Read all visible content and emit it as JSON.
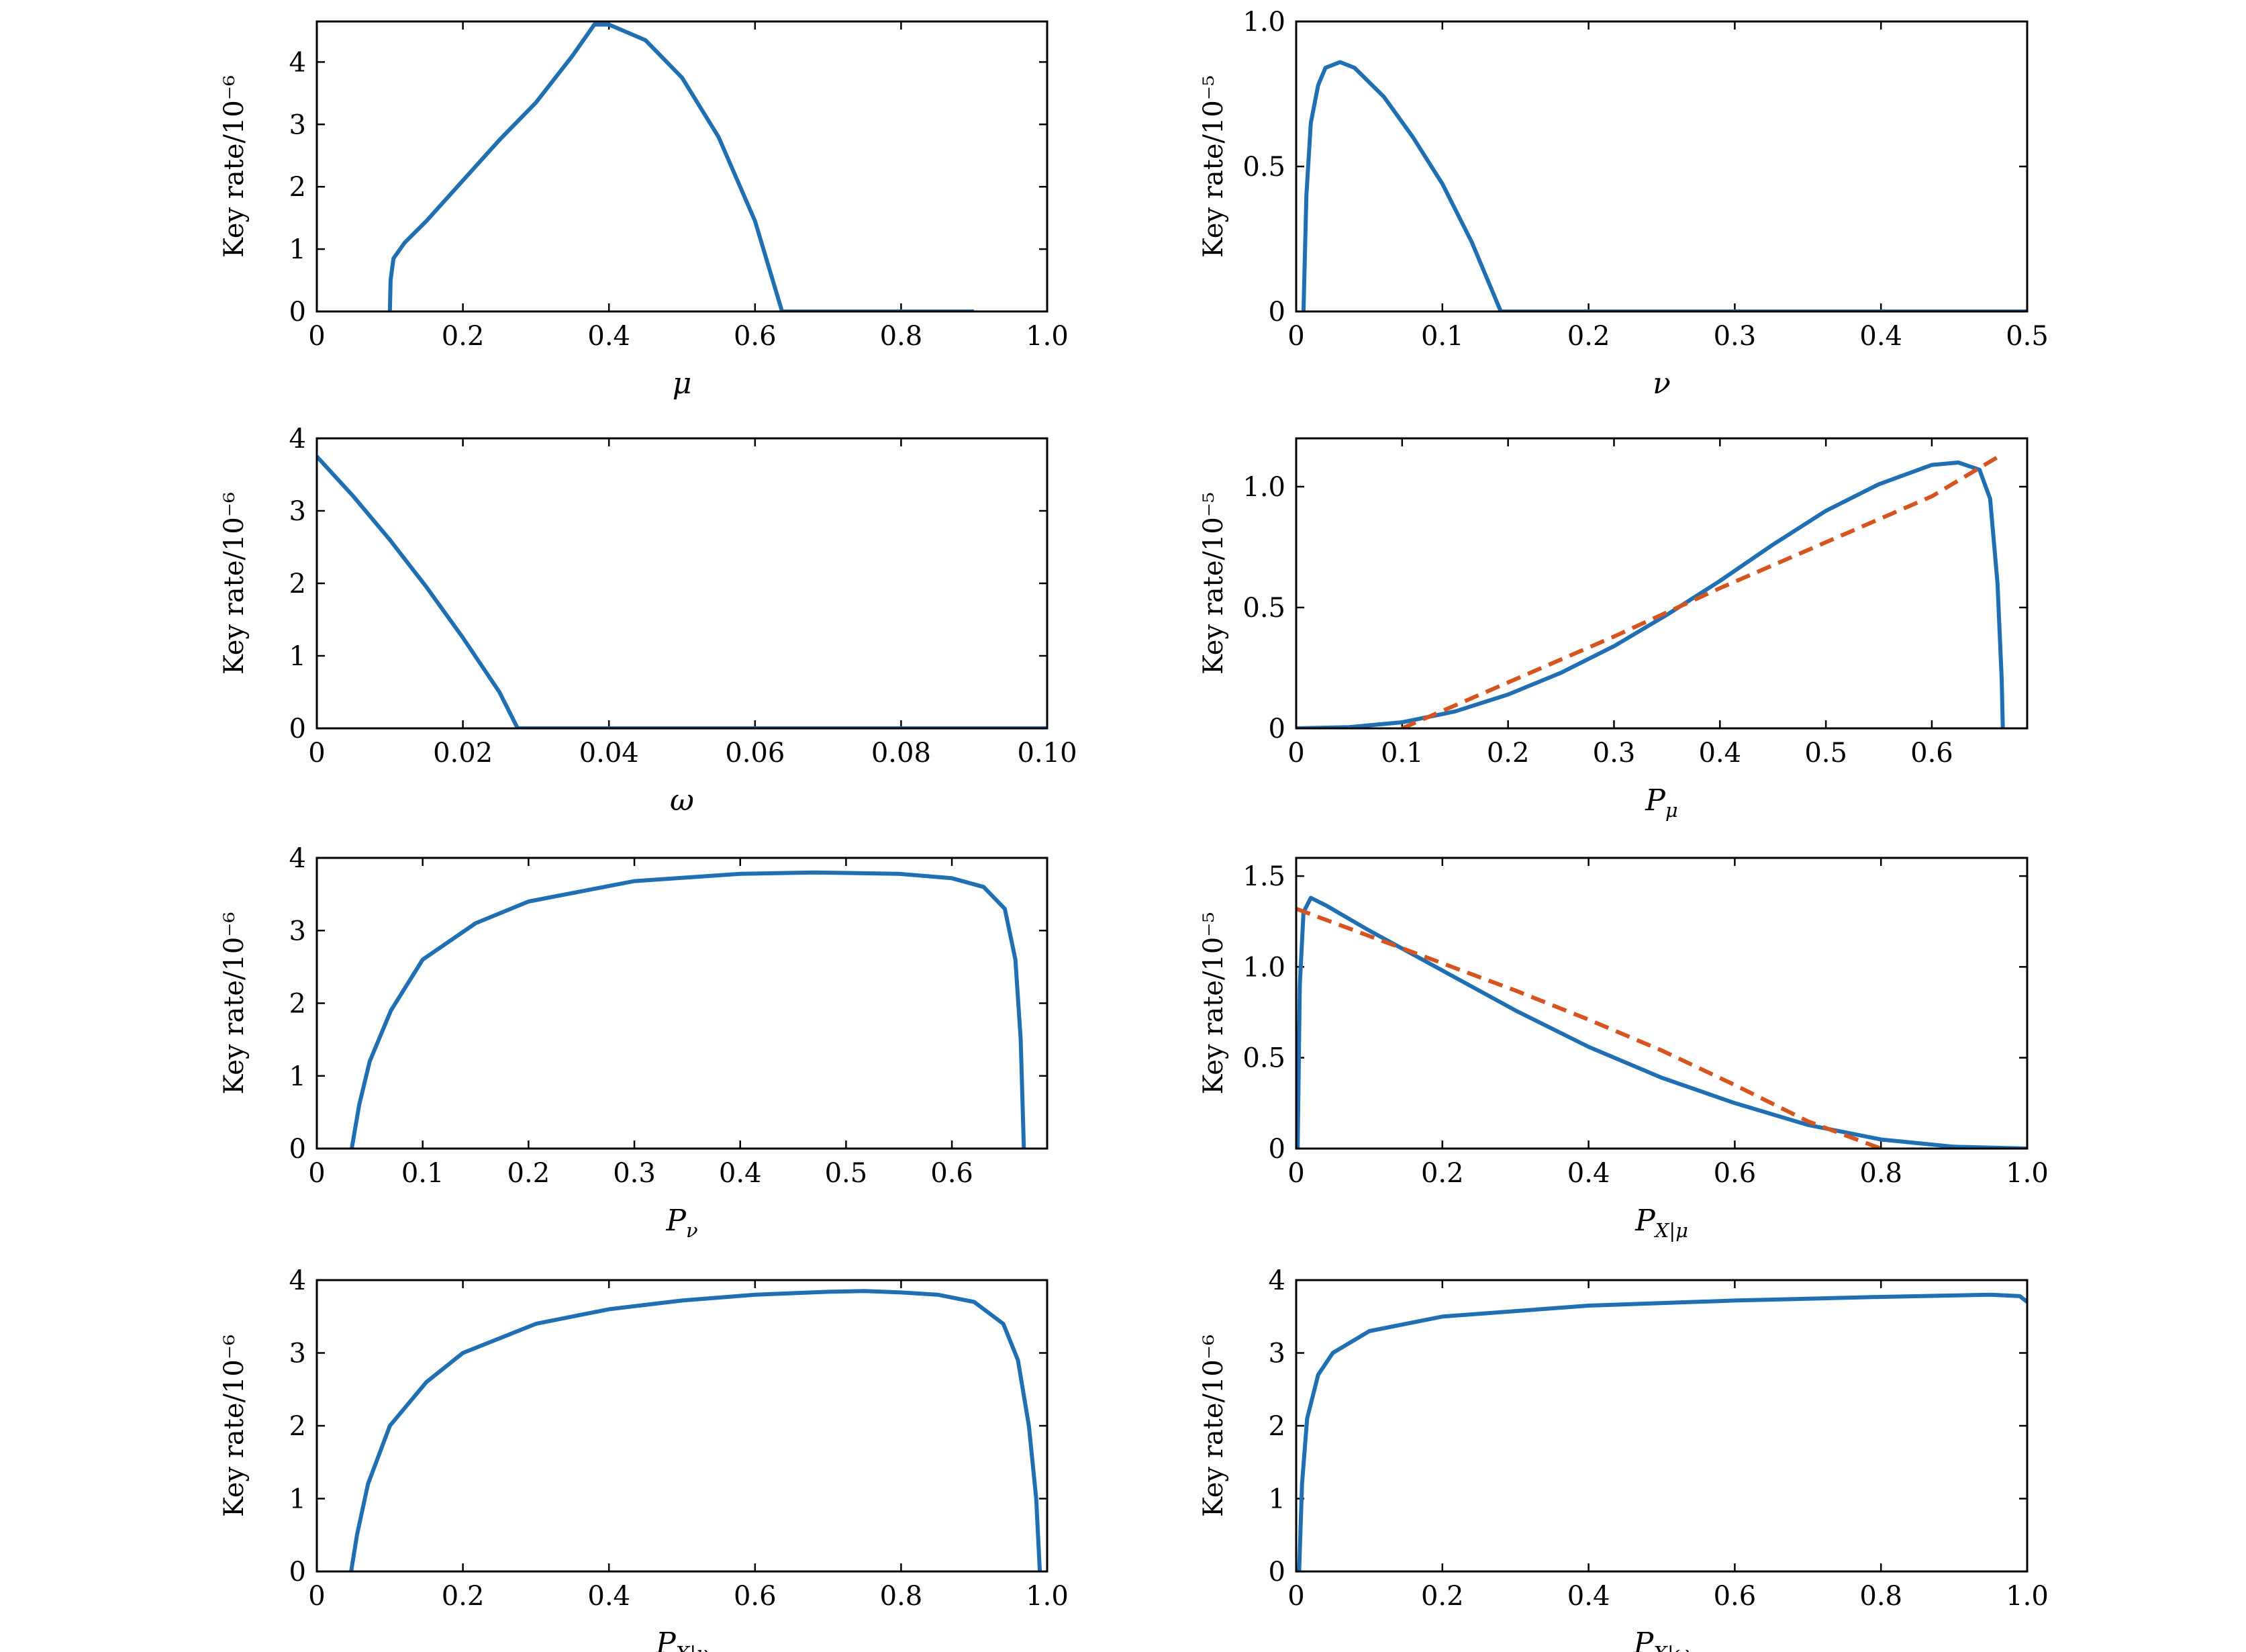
{
  "colors": {
    "solid": "#1f6fb2",
    "dashed": "#d5541f"
  },
  "chart_data": [
    {
      "type": "line",
      "xlabel": "μ",
      "ylabel": "Key rate/10⁻⁶",
      "xlim": [
        0,
        1.0
      ],
      "ylim": [
        0,
        4.65
      ],
      "xticks": [
        0,
        0.2,
        0.4,
        0.6,
        0.8,
        1.0
      ],
      "xtick_labels": [
        "0",
        "0.2",
        "0.4",
        "0.6",
        "0.8",
        "1.0"
      ],
      "yticks": [
        0,
        1,
        2,
        3,
        4
      ],
      "ytick_labels": [
        "0",
        "1",
        "2",
        "3",
        "4"
      ],
      "series": [
        {
          "style": "solid",
          "points": [
            [
              0.1,
              0
            ],
            [
              0.101,
              0.5
            ],
            [
              0.105,
              0.85
            ],
            [
              0.12,
              1.1
            ],
            [
              0.15,
              1.45
            ],
            [
              0.2,
              2.1
            ],
            [
              0.25,
              2.75
            ],
            [
              0.3,
              3.35
            ],
            [
              0.35,
              4.1
            ],
            [
              0.38,
              4.6
            ],
            [
              0.4,
              4.6
            ],
            [
              0.45,
              4.35
            ],
            [
              0.5,
              3.75
            ],
            [
              0.55,
              2.8
            ],
            [
              0.6,
              1.45
            ],
            [
              0.637,
              0
            ],
            [
              0.9,
              0
            ]
          ]
        }
      ]
    },
    {
      "type": "line",
      "xlabel": "ν",
      "ylabel": "Key rate/10⁻⁵",
      "xlim": [
        0,
        0.5
      ],
      "ylim": [
        0,
        1.0
      ],
      "xticks": [
        0,
        0.1,
        0.2,
        0.3,
        0.4,
        0.5
      ],
      "xtick_labels": [
        "0",
        "0.1",
        "0.2",
        "0.3",
        "0.4",
        "0.5"
      ],
      "yticks": [
        0,
        0.5,
        1.0
      ],
      "ytick_labels": [
        "0",
        "0.5",
        "1.0"
      ],
      "series": [
        {
          "style": "solid",
          "points": [
            [
              0.005,
              0
            ],
            [
              0.007,
              0.4
            ],
            [
              0.01,
              0.65
            ],
            [
              0.015,
              0.78
            ],
            [
              0.02,
              0.84
            ],
            [
              0.03,
              0.86
            ],
            [
              0.04,
              0.84
            ],
            [
              0.06,
              0.74
            ],
            [
              0.08,
              0.6
            ],
            [
              0.1,
              0.44
            ],
            [
              0.12,
              0.24
            ],
            [
              0.14,
              0
            ],
            [
              0.5,
              0
            ]
          ]
        }
      ]
    },
    {
      "type": "line",
      "xlabel": "ω",
      "ylabel": "Key rate/10⁻⁶",
      "xlim": [
        0,
        0.1
      ],
      "ylim": [
        0,
        4.0
      ],
      "xticks": [
        0,
        0.02,
        0.04,
        0.06,
        0.08,
        0.1
      ],
      "xtick_labels": [
        "0",
        "0.02",
        "0.04",
        "0.06",
        "0.08",
        "0.10"
      ],
      "yticks": [
        0,
        1,
        2,
        3,
        4
      ],
      "ytick_labels": [
        "0",
        "1",
        "2",
        "3",
        "4"
      ],
      "series": [
        {
          "style": "solid",
          "points": [
            [
              0,
              3.75
            ],
            [
              0.005,
              3.2
            ],
            [
              0.01,
              2.6
            ],
            [
              0.015,
              1.95
            ],
            [
              0.02,
              1.25
            ],
            [
              0.025,
              0.5
            ],
            [
              0.0275,
              0
            ],
            [
              0.1,
              0
            ]
          ]
        }
      ]
    },
    {
      "type": "line",
      "xlabel": "Pμ",
      "ylabel": "Key rate/10⁻⁵",
      "xlim": [
        0,
        0.69
      ],
      "ylim": [
        0,
        1.2
      ],
      "xticks": [
        0,
        0.1,
        0.2,
        0.3,
        0.4,
        0.5,
        0.6
      ],
      "xtick_labels": [
        "0",
        "0.1",
        "0.2",
        "0.3",
        "0.4",
        "0.5",
        "0.6"
      ],
      "yticks": [
        0,
        0.5,
        1.0
      ],
      "ytick_labels": [
        "0",
        "0.5",
        "1.0"
      ],
      "series": [
        {
          "style": "solid",
          "points": [
            [
              0,
              0
            ],
            [
              0.05,
              0.005
            ],
            [
              0.1,
              0.025
            ],
            [
              0.15,
              0.07
            ],
            [
              0.2,
              0.14
            ],
            [
              0.25,
              0.23
            ],
            [
              0.3,
              0.34
            ],
            [
              0.35,
              0.47
            ],
            [
              0.4,
              0.61
            ],
            [
              0.45,
              0.76
            ],
            [
              0.5,
              0.9
            ],
            [
              0.55,
              1.01
            ],
            [
              0.6,
              1.09
            ],
            [
              0.625,
              1.1
            ],
            [
              0.645,
              1.07
            ],
            [
              0.655,
              0.95
            ],
            [
              0.662,
              0.6
            ],
            [
              0.666,
              0.2
            ],
            [
              0.667,
              0
            ]
          ]
        },
        {
          "style": "dashed",
          "points": [
            [
              0.1,
              0
            ],
            [
              0.2,
              0.19
            ],
            [
              0.3,
              0.38
            ],
            [
              0.4,
              0.58
            ],
            [
              0.5,
              0.77
            ],
            [
              0.6,
              0.96
            ],
            [
              0.665,
              1.13
            ]
          ]
        }
      ]
    },
    {
      "type": "line",
      "xlabel": "Pν",
      "ylabel": "Key rate/10⁻⁶",
      "xlim": [
        0,
        0.69
      ],
      "ylim": [
        0,
        4.0
      ],
      "xticks": [
        0,
        0.1,
        0.2,
        0.3,
        0.4,
        0.5,
        0.6
      ],
      "xtick_labels": [
        "0",
        "0.1",
        "0.2",
        "0.3",
        "0.4",
        "0.5",
        "0.6"
      ],
      "yticks": [
        0,
        1,
        2,
        3,
        4
      ],
      "ytick_labels": [
        "0",
        "1",
        "2",
        "3",
        "4"
      ],
      "series": [
        {
          "style": "solid",
          "points": [
            [
              0.033,
              0
            ],
            [
              0.04,
              0.6
            ],
            [
              0.05,
              1.2
            ],
            [
              0.07,
              1.9
            ],
            [
              0.1,
              2.6
            ],
            [
              0.15,
              3.1
            ],
            [
              0.2,
              3.4
            ],
            [
              0.3,
              3.68
            ],
            [
              0.4,
              3.78
            ],
            [
              0.47,
              3.8
            ],
            [
              0.55,
              3.78
            ],
            [
              0.6,
              3.72
            ],
            [
              0.63,
              3.6
            ],
            [
              0.65,
              3.3
            ],
            [
              0.66,
              2.6
            ],
            [
              0.665,
              1.5
            ],
            [
              0.668,
              0
            ]
          ]
        }
      ]
    },
    {
      "type": "line",
      "xlabel": "PX|μ",
      "ylabel": "Key rate/10⁻⁵",
      "xlim": [
        0,
        1.0
      ],
      "ylim": [
        0,
        1.6
      ],
      "xticks": [
        0,
        0.2,
        0.4,
        0.6,
        0.8,
        1.0
      ],
      "xtick_labels": [
        "0",
        "0.2",
        "0.4",
        "0.6",
        "0.8",
        "1.0"
      ],
      "yticks": [
        0,
        0.5,
        1.0,
        1.5
      ],
      "ytick_labels": [
        "0",
        "0.5",
        "1.0",
        "1.5"
      ],
      "series": [
        {
          "style": "solid",
          "points": [
            [
              0.002,
              0
            ],
            [
              0.005,
              0.9
            ],
            [
              0.01,
              1.3
            ],
            [
              0.02,
              1.38
            ],
            [
              0.04,
              1.34
            ],
            [
              0.1,
              1.2
            ],
            [
              0.2,
              0.98
            ],
            [
              0.3,
              0.76
            ],
            [
              0.4,
              0.56
            ],
            [
              0.5,
              0.39
            ],
            [
              0.6,
              0.25
            ],
            [
              0.7,
              0.13
            ],
            [
              0.8,
              0.05
            ],
            [
              0.9,
              0.01
            ],
            [
              1.0,
              0
            ]
          ]
        },
        {
          "style": "dashed",
          "points": [
            [
              0,
              1.32
            ],
            [
              0.1,
              1.17
            ],
            [
              0.2,
              1.02
            ],
            [
              0.3,
              0.87
            ],
            [
              0.4,
              0.71
            ],
            [
              0.5,
              0.54
            ],
            [
              0.6,
              0.35
            ],
            [
              0.7,
              0.15
            ],
            [
              0.8,
              0
            ]
          ]
        }
      ]
    },
    {
      "type": "line",
      "xlabel": "PX|ν",
      "ylabel": "Key rate/10⁻⁶",
      "xlim": [
        0,
        1.0
      ],
      "ylim": [
        0,
        4.0
      ],
      "xticks": [
        0,
        0.2,
        0.4,
        0.6,
        0.8,
        1.0
      ],
      "xtick_labels": [
        "0",
        "0.2",
        "0.4",
        "0.6",
        "0.8",
        "1.0"
      ],
      "yticks": [
        0,
        1,
        2,
        3,
        4
      ],
      "ytick_labels": [
        "0",
        "1",
        "2",
        "3",
        "4"
      ],
      "series": [
        {
          "style": "solid",
          "points": [
            [
              0.047,
              0
            ],
            [
              0.055,
              0.5
            ],
            [
              0.07,
              1.2
            ],
            [
              0.1,
              2.0
            ],
            [
              0.15,
              2.6
            ],
            [
              0.2,
              3.0
            ],
            [
              0.3,
              3.4
            ],
            [
              0.4,
              3.6
            ],
            [
              0.5,
              3.72
            ],
            [
              0.6,
              3.8
            ],
            [
              0.7,
              3.84
            ],
            [
              0.75,
              3.85
            ],
            [
              0.8,
              3.83
            ],
            [
              0.85,
              3.8
            ],
            [
              0.9,
              3.7
            ],
            [
              0.94,
              3.4
            ],
            [
              0.96,
              2.9
            ],
            [
              0.975,
              2.0
            ],
            [
              0.985,
              1.0
            ],
            [
              0.99,
              0
            ]
          ]
        }
      ]
    },
    {
      "type": "line",
      "xlabel": "PX|ω",
      "ylabel": "Key rate/10⁻⁶",
      "xlim": [
        0,
        1.0
      ],
      "ylim": [
        0,
        4.0
      ],
      "xticks": [
        0,
        0.2,
        0.4,
        0.6,
        0.8,
        1.0
      ],
      "xtick_labels": [
        "0",
        "0.2",
        "0.4",
        "0.6",
        "0.8",
        "1.0"
      ],
      "yticks": [
        0,
        1,
        2,
        3,
        4
      ],
      "ytick_labels": [
        "0",
        "1",
        "2",
        "3",
        "4"
      ],
      "series": [
        {
          "style": "solid",
          "points": [
            [
              0.004,
              0
            ],
            [
              0.008,
              1.2
            ],
            [
              0.015,
              2.1
            ],
            [
              0.03,
              2.7
            ],
            [
              0.05,
              3.0
            ],
            [
              0.1,
              3.3
            ],
            [
              0.2,
              3.5
            ],
            [
              0.4,
              3.65
            ],
            [
              0.6,
              3.72
            ],
            [
              0.8,
              3.77
            ],
            [
              0.95,
              3.8
            ],
            [
              0.99,
              3.78
            ],
            [
              1.0,
              3.7
            ]
          ]
        }
      ]
    }
  ]
}
